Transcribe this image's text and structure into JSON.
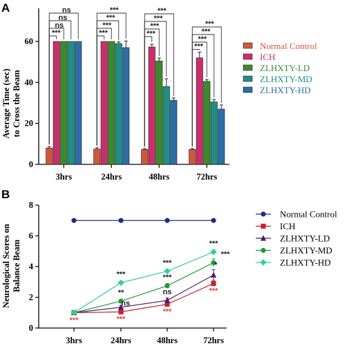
{
  "panels": {
    "a_label": "A",
    "b_label": "B"
  },
  "chart_data": [
    {
      "type": "bar",
      "ylabel_line1": "Average Time (sec)",
      "ylabel_line2": "to Cross the Beam",
      "categories": [
        "3hrs",
        "24hrs",
        "48hrs",
        "72hrs"
      ],
      "ylim": [
        0,
        60
      ],
      "yticks": [
        0,
        20,
        40,
        60
      ],
      "series": [
        {
          "name": "Normal Control",
          "color": "#d2573a",
          "values": [
            8,
            7.5,
            7.3,
            7.3
          ],
          "errors": [
            0.7,
            0.6,
            0.4,
            0.4
          ]
        },
        {
          "name": "ICH",
          "color": "#c9306b",
          "values": [
            60,
            60,
            57.3,
            52
          ],
          "errors": [
            0,
            0,
            1.3,
            2.8
          ]
        },
        {
          "name": "ZLHXTY-LD",
          "color": "#3d8a2c",
          "values": [
            60,
            60,
            50.5,
            40.5
          ],
          "errors": [
            0,
            0,
            1.4,
            0.9
          ]
        },
        {
          "name": "ZLHXTY-MD",
          "color": "#1e8f86",
          "values": [
            60,
            59,
            38,
            30.5
          ],
          "errors": [
            0,
            0.8,
            3.8,
            1.2
          ]
        },
        {
          "name": "ZLHXTY-HD",
          "color": "#2c6ea6",
          "values": [
            60,
            57,
            31.3,
            27
          ],
          "errors": [
            0,
            3.2,
            1.1,
            2.0
          ]
        }
      ],
      "significance": {
        "first_group": [
          "***",
          "ns",
          "ns",
          "ns"
        ],
        "other_groups": [
          "***",
          "***",
          "***",
          "***"
        ]
      }
    },
    {
      "type": "line",
      "ylabel_line1": "Neurological Scores on",
      "ylabel_line2": "Balance Beam",
      "categories": [
        "3hrs",
        "24hrs",
        "48hrs",
        "72hrs"
      ],
      "ylim": [
        0,
        8
      ],
      "yticks": [
        0,
        2,
        4,
        6,
        8
      ],
      "series": [
        {
          "name": "Normal Control",
          "color": "#1f2a8c",
          "marker": "circle",
          "values": [
            7,
            7,
            7,
            7
          ],
          "errors": [
            0,
            0,
            0,
            0
          ]
        },
        {
          "name": "ICH",
          "color": "#c8232c",
          "marker": "square",
          "values": [
            1,
            1.05,
            1.55,
            2.9
          ],
          "errors": [
            0,
            0.1,
            0.15,
            0.2
          ]
        },
        {
          "name": "ZLHXTY-LD",
          "color": "#4b1a6e",
          "marker": "triangle",
          "values": [
            1,
            1.35,
            1.8,
            3.45
          ],
          "errors": [
            0,
            0.12,
            0.15,
            0.35
          ]
        },
        {
          "name": "ZLHXTY-MD",
          "color": "#1f9a33",
          "marker": "circle",
          "values": [
            1,
            1.75,
            2.75,
            4.25
          ],
          "errors": [
            0,
            0.12,
            0.15,
            0.25
          ]
        },
        {
          "name": "ZLHXTY-HD",
          "color": "#2fd0a0",
          "marker": "diamond",
          "values": [
            1,
            2.95,
            3.7,
            4.95
          ],
          "errors": [
            0,
            0.1,
            0.12,
            0.15
          ]
        }
      ],
      "annotations": {
        "red_stars": [
          "***",
          "***",
          "***",
          "***"
        ],
        "black": [
          {
            "text": "***",
            "cat": 1,
            "y": 3.35
          },
          {
            "text": "**",
            "cat": 1,
            "y": 2.15
          },
          {
            "text": "ns",
            "cat": 1.1,
            "y": 1.45
          },
          {
            "text": "***",
            "cat": 2,
            "y": 4.1
          },
          {
            "text": "***",
            "cat": 2,
            "y": 3.15
          },
          {
            "text": "ns",
            "cat": 2,
            "y": 2.2
          },
          {
            "text": "***",
            "cat": 3,
            "y": 5.35
          },
          {
            "text": "***",
            "cat": 3.25,
            "y": 4.65
          },
          {
            "text": "*",
            "cat": 3.05,
            "y": 3.95
          }
        ]
      }
    }
  ]
}
